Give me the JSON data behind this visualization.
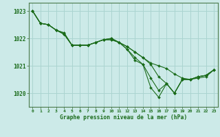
{
  "bg_color": "#cceae8",
  "grid_color": "#aad4d0",
  "line_color": "#1a6b1a",
  "marker_color": "#1a6b1a",
  "xlabel": "Graphe pression niveau de la mer (hPa)",
  "xlim_min": -0.5,
  "xlim_max": 23.5,
  "ylim_min": 1019.5,
  "ylim_max": 1023.3,
  "yticks": [
    1020,
    1021,
    1022,
    1023
  ],
  "xticks": [
    0,
    1,
    2,
    3,
    4,
    5,
    6,
    7,
    8,
    9,
    10,
    11,
    12,
    13,
    14,
    15,
    16,
    17,
    18,
    19,
    20,
    21,
    22,
    23
  ],
  "series": [
    [
      1023.0,
      1022.55,
      1022.5,
      1022.3,
      1022.2,
      1021.75,
      1021.75,
      1021.75,
      1021.85,
      1021.95,
      1022.0,
      1021.85,
      1021.7,
      1021.5,
      1021.3,
      1021.1,
      1021.0,
      1020.9,
      1020.7,
      1020.55,
      1020.5,
      1020.55,
      1020.6,
      1020.85
    ],
    [
      1023.0,
      1022.55,
      1022.5,
      1022.3,
      1022.2,
      1021.75,
      1021.75,
      1021.75,
      1021.85,
      1021.95,
      1022.0,
      1021.85,
      1021.7,
      1021.5,
      1021.3,
      1021.05,
      1020.6,
      1020.35,
      1020.0,
      1020.5,
      1020.5,
      1020.6,
      1020.65,
      1020.85
    ],
    [
      1023.0,
      1022.55,
      1022.5,
      1022.3,
      1022.15,
      1021.75,
      1021.75,
      1021.75,
      1021.85,
      1021.95,
      1021.95,
      1021.85,
      1021.6,
      1021.3,
      1021.05,
      1020.55,
      1020.1,
      1020.35,
      1020.0,
      1020.5,
      1020.5,
      1020.6,
      1020.65,
      1020.85
    ],
    [
      1023.0,
      1022.55,
      1022.5,
      1022.3,
      1022.15,
      1021.75,
      1021.75,
      1021.75,
      1021.85,
      1021.95,
      1021.95,
      1021.85,
      1021.6,
      1021.2,
      1021.05,
      1020.2,
      1019.85,
      1020.35,
      1020.0,
      1020.5,
      1020.5,
      1020.6,
      1020.65,
      1020.85
    ]
  ],
  "figwidth": 3.2,
  "figheight": 2.0,
  "dpi": 100
}
